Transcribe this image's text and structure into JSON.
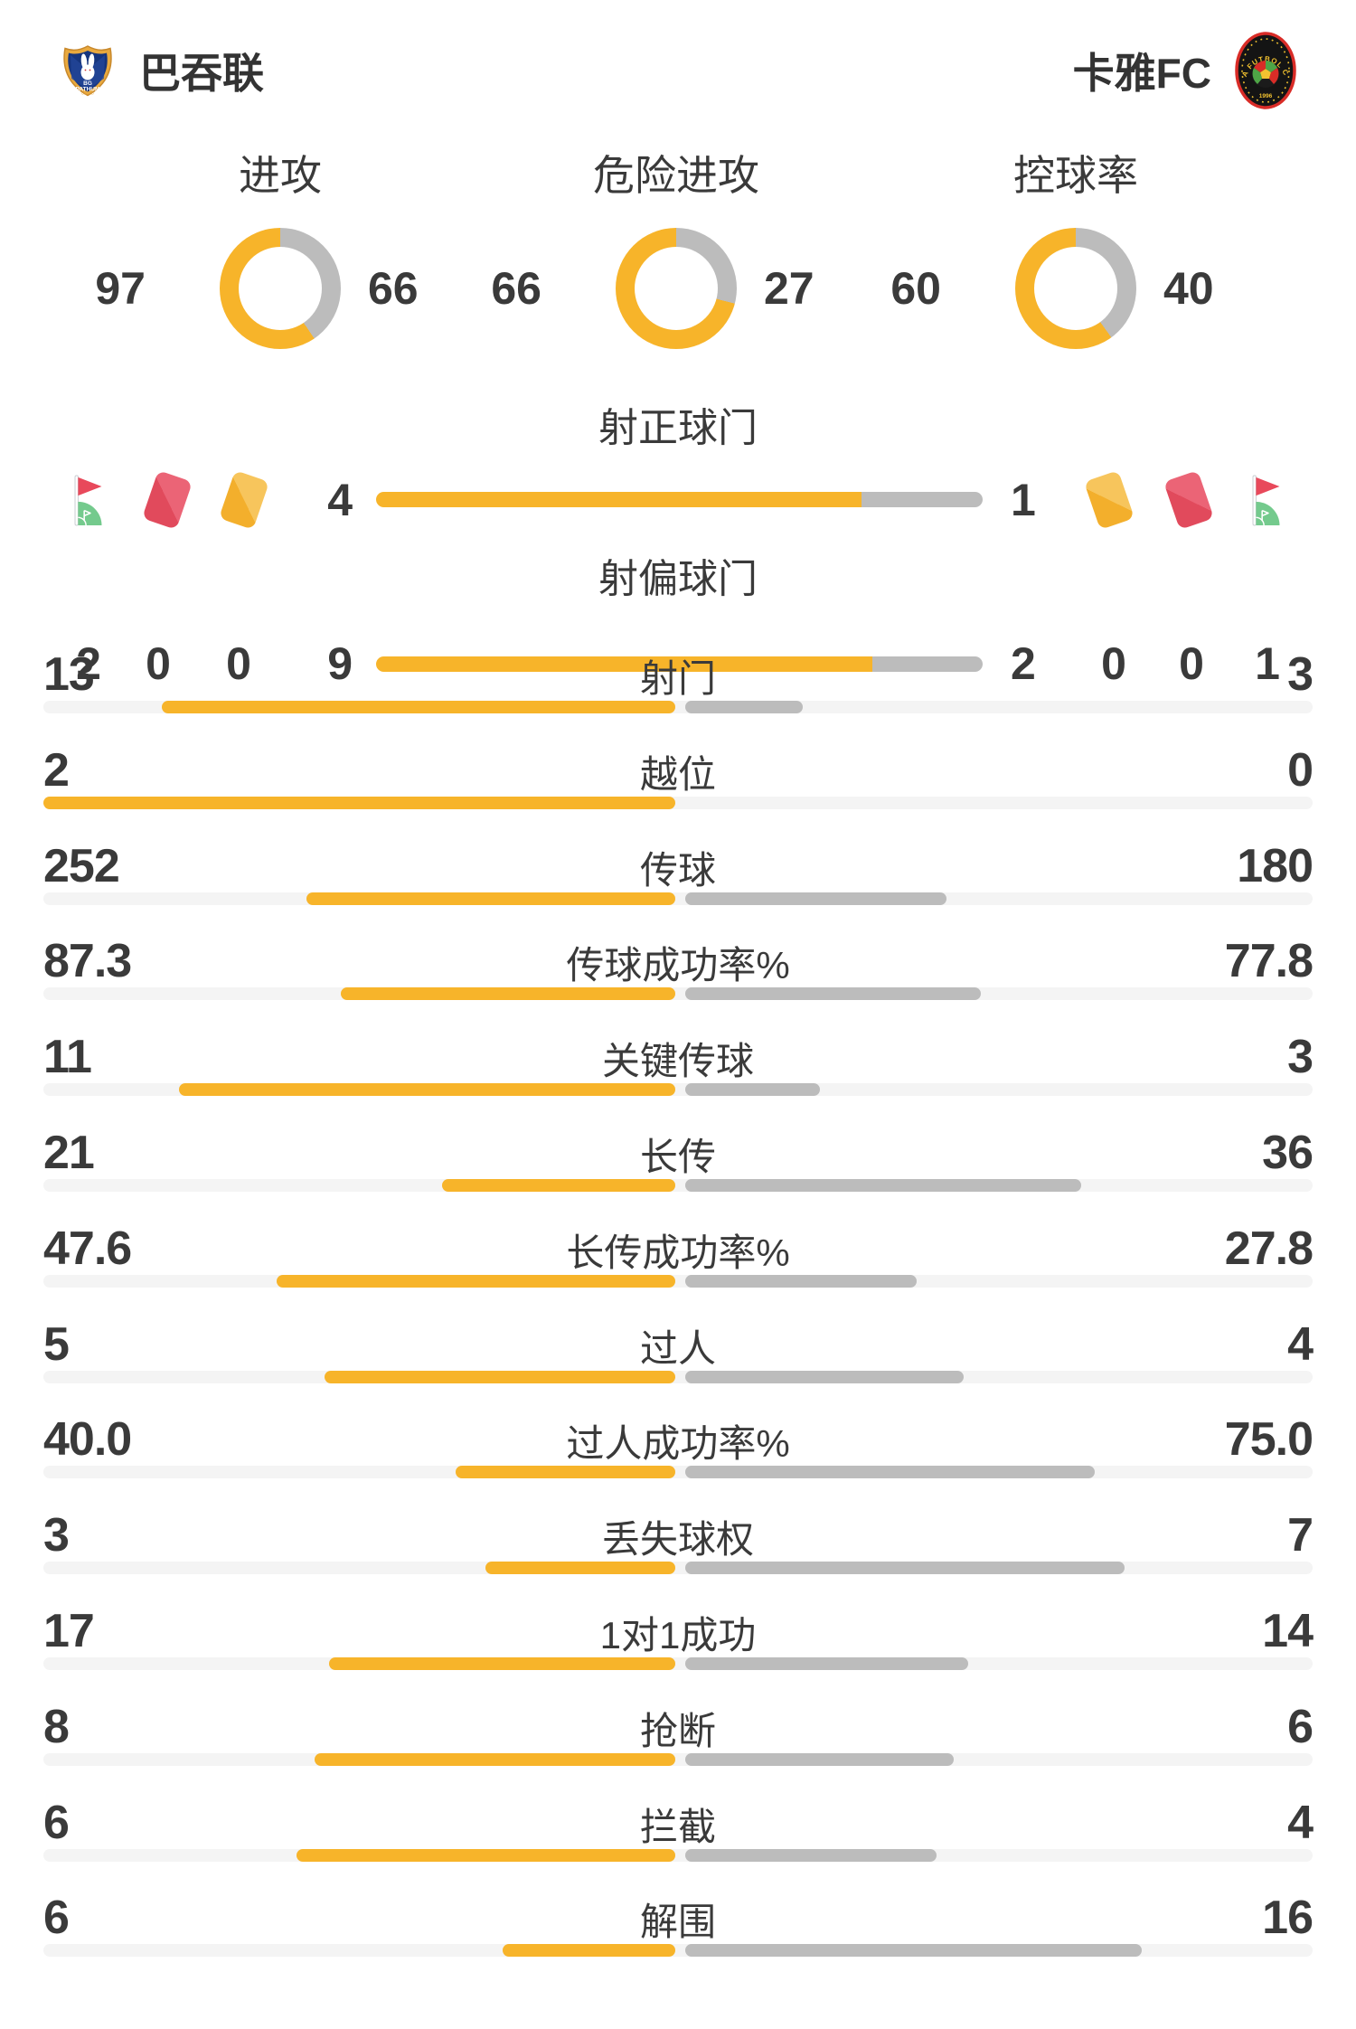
{
  "header": {
    "home_team": "巴吞联",
    "away_team": "卡雅FC"
  },
  "donut_charts": [
    {
      "label": "进攻",
      "home": "97",
      "away": "66"
    },
    {
      "label": "危险进攻",
      "home": "66",
      "away": "27"
    },
    {
      "label": "控球率",
      "home": "60",
      "away": "40"
    }
  ],
  "discipline": {
    "home": {
      "corner_kicks": "2",
      "red_cards": "0",
      "yellow_cards": "0"
    },
    "away": {
      "corner_kicks": "1",
      "red_cards": "0",
      "yellow_cards": "0"
    }
  },
  "shot_bars": [
    {
      "label": "射正球门",
      "home": "4",
      "away": "1"
    },
    {
      "label": "射偏球门",
      "home": "9",
      "away": "2"
    }
  ],
  "stats": [
    {
      "label": "射门",
      "home": "13",
      "away": "3"
    },
    {
      "label": "越位",
      "home": "2",
      "away": "0"
    },
    {
      "label": "传球",
      "home": "252",
      "away": "180"
    },
    {
      "label": "传球成功率%",
      "home": "87.3",
      "away": "77.8"
    },
    {
      "label": "关键传球",
      "home": "11",
      "away": "3"
    },
    {
      "label": "长传",
      "home": "21",
      "away": "36"
    },
    {
      "label": "长传成功率%",
      "home": "47.6",
      "away": "27.8"
    },
    {
      "label": "过人",
      "home": "5",
      "away": "4"
    },
    {
      "label": "过人成功率%",
      "home": "40.0",
      "away": "75.0"
    },
    {
      "label": "丢失球权",
      "home": "3",
      "away": "7"
    },
    {
      "label": "1对1成功",
      "home": "17",
      "away": "14"
    },
    {
      "label": "抢断",
      "home": "8",
      "away": "6"
    },
    {
      "label": "拦截",
      "home": "6",
      "away": "4"
    },
    {
      "label": "解围",
      "home": "6",
      "away": "16"
    }
  ],
  "colors": {
    "accent_yellow": "#F7B42A",
    "bar_gray": "#BCBCBC",
    "track_gray": "#F4F4F4",
    "text_dark": "#3A3A3A",
    "card_red": "#E14A5C",
    "card_yellow": "#F3AF2C",
    "flag_red": "#E8495B",
    "mound_green": "#74CA8D"
  }
}
